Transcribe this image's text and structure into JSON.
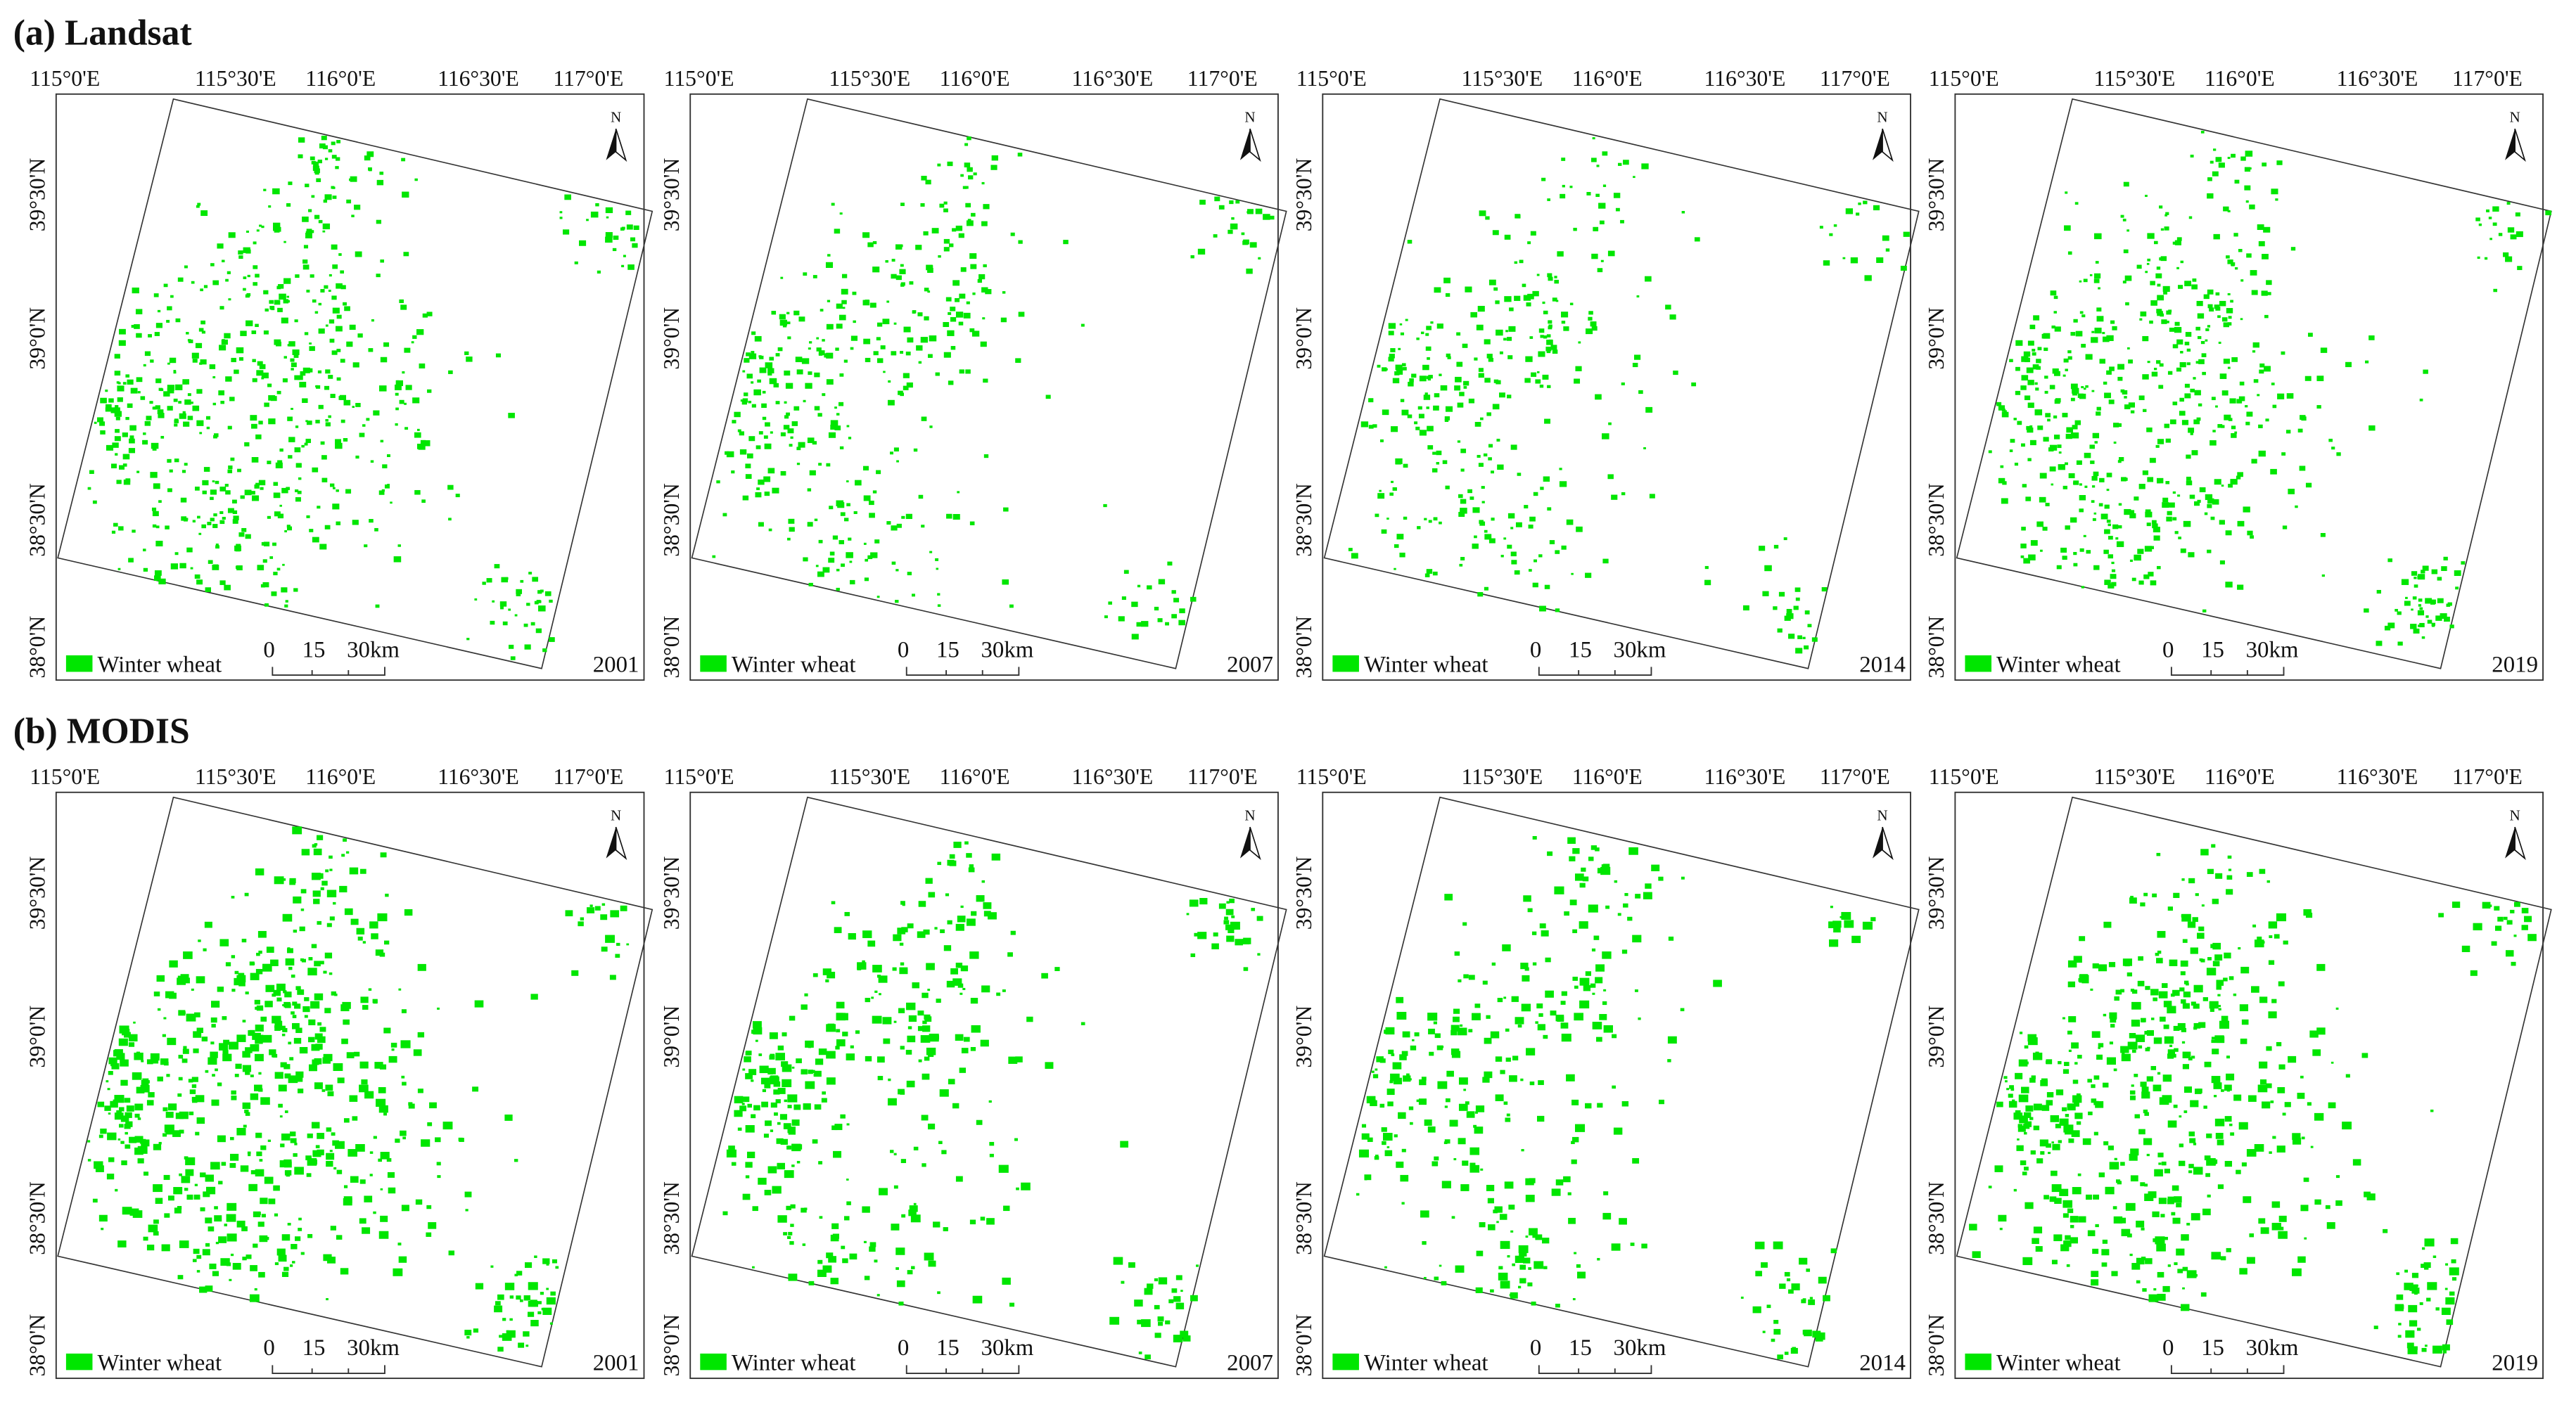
{
  "rows": [
    {
      "title": "(a) Landsat",
      "maps": [
        {
          "year": "2001"
        },
        {
          "year": "2007"
        },
        {
          "year": "2014"
        },
        {
          "year": "2019"
        }
      ]
    },
    {
      "title": "(b) MODIS",
      "maps": [
        {
          "year": "2001"
        },
        {
          "year": "2007"
        },
        {
          "year": "2014"
        },
        {
          "year": "2019"
        }
      ]
    }
  ],
  "lon_labels": [
    "115°0'E",
    "115°30'E",
    "116°0'E",
    "116°30'E",
    "117°0'E"
  ],
  "lat_labels": [
    "39°30'N",
    "39°0'N",
    "38°30'N",
    "38°0'N"
  ],
  "legend": "Winter wheat",
  "scale_labels": [
    "0",
    "15",
    "30km"
  ],
  "north": "N"
}
